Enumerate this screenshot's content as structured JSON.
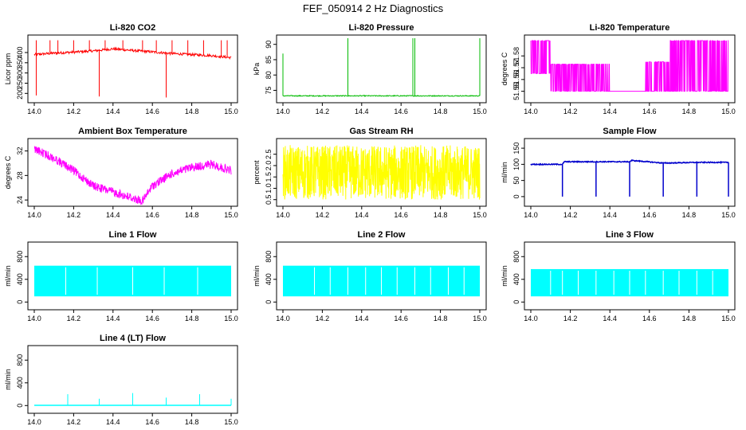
{
  "page_title": "FEF_050914  2 Hz Diagnostics",
  "chart_data": [
    {
      "type": "line",
      "title": "Li-820 CO2",
      "xlabel": "",
      "ylabel": "Licor ppm",
      "xlim": [
        14.0,
        15.0
      ],
      "ylim": [
        170,
        470
      ],
      "xticks": [
        "14.0",
        "14.2",
        "14.4",
        "14.6",
        "14.8",
        "15.0"
      ],
      "yticks": [
        "200",
        "250",
        "300",
        "350",
        "400"
      ],
      "color": "#ff0000",
      "series": [
        {
          "x": [
            14.0,
            14.1,
            14.2,
            14.3,
            14.4,
            14.5,
            14.6,
            14.7,
            14.8,
            14.9,
            15.0
          ],
          "values": [
            390,
            397,
            402,
            408,
            418,
            410,
            403,
            395,
            390,
            385,
            375
          ]
        }
      ]
    },
    {
      "type": "line",
      "title": "Li-820 Pressure",
      "xlabel": "",
      "ylabel": "kPa",
      "xlim": [
        14.0,
        15.0
      ],
      "ylim": [
        72,
        92
      ],
      "xticks": [
        "14.0",
        "14.2",
        "14.4",
        "14.6",
        "14.8",
        "15.0"
      ],
      "yticks": [
        "75",
        "80",
        "85",
        "90"
      ],
      "color": "#00bb00",
      "series": [
        {
          "x": [
            14.0,
            14.02,
            14.33,
            14.34,
            14.66,
            14.67,
            15.0
          ],
          "values": [
            87,
            73.2,
            73.2,
            92,
            73.2,
            92,
            73.2
          ]
        }
      ]
    },
    {
      "type": "line",
      "title": "Li-820 Temperature",
      "xlabel": "",
      "ylabel": "degrees C",
      "xlim": [
        14.0,
        15.0
      ],
      "ylim": [
        51.543,
        51.595
      ],
      "xticks": [
        "14.0",
        "14.2",
        "14.4",
        "14.6",
        "14.8",
        "15.0"
      ],
      "yticks": [
        "51.55",
        "51.56",
        "51.57",
        "51.58"
      ],
      "color": "#ff00ff",
      "series": [
        {
          "x": [
            14.0,
            14.1,
            14.2,
            14.4,
            14.58,
            14.7,
            14.9,
            15.0
          ],
          "values": [
            51.575,
            51.575,
            51.56,
            51.55,
            51.55,
            51.565,
            51.58,
            51.585
          ]
        }
      ]
    },
    {
      "type": "line",
      "title": "Ambient Box Temperature",
      "xlabel": "",
      "ylabel": "degrees C",
      "xlim": [
        14.0,
        15.0
      ],
      "ylim": [
        23.5,
        33.5
      ],
      "xticks": [
        "14.0",
        "14.2",
        "14.4",
        "14.6",
        "14.8",
        "15.0"
      ],
      "yticks": [
        "24",
        "28",
        "32"
      ],
      "color": "#ff00ff",
      "series": [
        {
          "x": [
            14.0,
            14.1,
            14.2,
            14.3,
            14.4,
            14.5,
            14.55,
            14.6,
            14.7,
            14.8,
            14.9,
            15.0
          ],
          "values": [
            33,
            31.5,
            29.5,
            27,
            26,
            25,
            24.5,
            27,
            29,
            30,
            30.5,
            29.5
          ]
        }
      ]
    },
    {
      "type": "line",
      "title": "Gas Stream RH",
      "xlabel": "",
      "ylabel": "percent",
      "xlim": [
        14.0,
        15.0
      ],
      "ylim": [
        0.35,
        3.05
      ],
      "xticks": [
        "14.0",
        "14.2",
        "14.4",
        "14.6",
        "14.8",
        "15.0"
      ],
      "yticks": [
        "0.5",
        "1.0",
        "1.5",
        "2.0",
        "2.5"
      ],
      "color": "#ffff00",
      "series": [
        {
          "x": [
            14.0,
            15.0
          ],
          "values": [
            2.2,
            2.2
          ]
        }
      ]
    },
    {
      "type": "line",
      "title": "Sample Flow",
      "xlabel": "",
      "ylabel": "ml/min",
      "xlim": [
        14.0,
        15.0
      ],
      "ylim": [
        -20,
        170
      ],
      "xticks": [
        "14.0",
        "14.2",
        "14.4",
        "14.6",
        "14.8",
        "15.0"
      ],
      "yticks": [
        "0",
        "50",
        "100",
        "150"
      ],
      "color": "#0000cc",
      "series": [
        {
          "x": [
            14.0,
            14.16,
            14.17,
            14.5,
            14.51,
            14.67,
            14.68,
            14.84,
            15.0
          ],
          "values": [
            100,
            100,
            108,
            108,
            112,
            104,
            104,
            106,
            106
          ]
        }
      ]
    },
    {
      "type": "area",
      "title": "Line 1 Flow",
      "xlabel": "",
      "ylabel": "ml/min",
      "xlim": [
        14.0,
        15.0
      ],
      "ylim": [
        -80,
        1000
      ],
      "xticks": [
        "14.0",
        "14.2",
        "14.4",
        "14.6",
        "14.8",
        "15.0"
      ],
      "yticks": [
        "0",
        "400",
        "800"
      ],
      "color": "#00ffff",
      "series": [
        {
          "x": [
            14.0,
            15.0
          ],
          "values": [
            640,
            640
          ]
        }
      ]
    },
    {
      "type": "area",
      "title": "Line 2 Flow",
      "xlabel": "",
      "ylabel": "ml/min",
      "xlim": [
        14.0,
        15.0
      ],
      "ylim": [
        -80,
        1000
      ],
      "xticks": [
        "14.0",
        "14.2",
        "14.4",
        "14.6",
        "14.8",
        "15.0"
      ],
      "yticks": [
        "0",
        "400",
        "800"
      ],
      "color": "#00ffff",
      "series": [
        {
          "x": [
            14.0,
            15.0
          ],
          "values": [
            640,
            640
          ]
        }
      ]
    },
    {
      "type": "area",
      "title": "Line 3 Flow",
      "xlabel": "",
      "ylabel": "ml/min",
      "xlim": [
        14.0,
        15.0
      ],
      "ylim": [
        -80,
        1000
      ],
      "xticks": [
        "14.0",
        "14.2",
        "14.4",
        "14.6",
        "14.8",
        "15.0"
      ],
      "yticks": [
        "0",
        "400",
        "800"
      ],
      "color": "#00ffff",
      "series": [
        {
          "x": [
            14.0,
            15.0
          ],
          "values": [
            580,
            580
          ]
        }
      ]
    },
    {
      "type": "line",
      "title": "Line 4 (LT) Flow",
      "xlabel": "",
      "ylabel": "ml/min",
      "xlim": [
        14.0,
        15.0
      ],
      "ylim": [
        -80,
        1000
      ],
      "xticks": [
        "14.0",
        "14.2",
        "14.4",
        "14.6",
        "14.8",
        "15.0"
      ],
      "yticks": [
        "0",
        "400",
        "800"
      ],
      "color": "#00ffff",
      "series": [
        {
          "x": [
            14.0,
            14.17,
            14.33,
            14.5,
            14.67,
            14.84,
            15.0
          ],
          "values": [
            5,
            200,
            120,
            220,
            140,
            200,
            120
          ]
        }
      ]
    }
  ]
}
